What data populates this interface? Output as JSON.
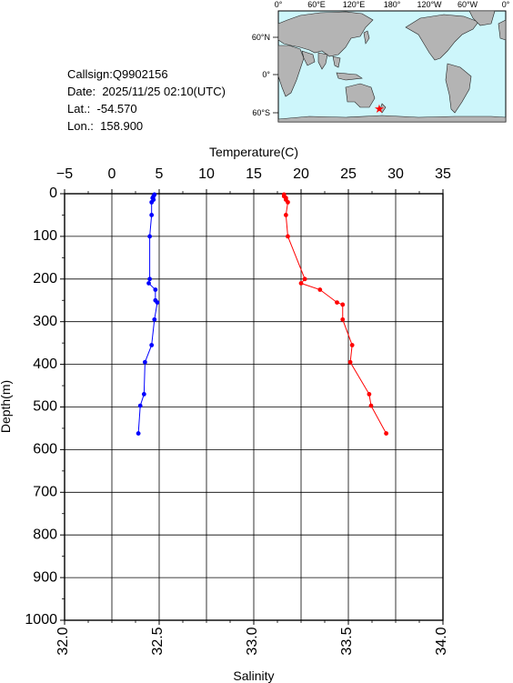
{
  "station": {
    "callsign_label": "Callsign:",
    "callsign": "Q9902156",
    "date_label": "Date:",
    "date": "2025/11/25 02:10(UTC)",
    "lat_label": "Lat.:",
    "lat": "-54.570",
    "lon_label": "Lon.:",
    "lon": "158.900"
  },
  "map": {
    "top_ticks": [
      "0°",
      "60°E",
      "120°E",
      "180°",
      "120°W",
      "60°W",
      "0°"
    ],
    "lat_ticks": [
      "60°N",
      "0°",
      "60°S"
    ],
    "colors": {
      "ocean": "#cdf6fb",
      "land": "#b4b4b4",
      "marker": "#ff0000"
    },
    "marker_icon": "star-icon"
  },
  "chart_data": {
    "type": "line",
    "title": "",
    "xlabel_top": "Temperature(C)",
    "xlabel_bottom": "Salinity",
    "ylabel": "Depth(m)",
    "temperature_range": [
      -5,
      35
    ],
    "salinity_range": [
      32.0,
      34.0
    ],
    "depth_range": [
      0,
      1000
    ],
    "y_inverted": true,
    "grid": true,
    "temperature_ticks": [
      "-5",
      "0",
      "5",
      "10",
      "15",
      "20",
      "25",
      "30",
      "35"
    ],
    "salinity_ticks": [
      "32.0",
      "32.5",
      "33.0",
      "33.5",
      "34.0"
    ],
    "depth_ticks": [
      "0",
      "100",
      "200",
      "300",
      "400",
      "500",
      "600",
      "700",
      "800",
      "900",
      "1000"
    ],
    "series": [
      {
        "key": "temperature",
        "color": "#0000ff",
        "axis": "temperature",
        "points": [
          [
            4.5,
            2
          ],
          [
            4.4,
            6
          ],
          [
            4.3,
            10
          ],
          [
            4.4,
            14
          ],
          [
            4.2,
            20
          ],
          [
            4.2,
            50
          ],
          [
            4.0,
            100
          ],
          [
            4.0,
            200
          ],
          [
            3.9,
            210
          ],
          [
            4.6,
            225
          ],
          [
            4.6,
            250
          ],
          [
            4.8,
            255
          ],
          [
            4.5,
            295
          ],
          [
            4.2,
            355
          ],
          [
            3.5,
            395
          ],
          [
            3.4,
            470
          ],
          [
            3.0,
            497
          ],
          [
            2.8,
            562
          ]
        ]
      },
      {
        "key": "salinity",
        "color": "#ff0000",
        "axis": "salinity",
        "points": [
          [
            33.16,
            2
          ],
          [
            33.16,
            6
          ],
          [
            33.17,
            10
          ],
          [
            33.17,
            14
          ],
          [
            33.18,
            20
          ],
          [
            33.17,
            50
          ],
          [
            33.18,
            100
          ],
          [
            33.27,
            200
          ],
          [
            33.25,
            210
          ],
          [
            33.35,
            225
          ],
          [
            33.44,
            255
          ],
          [
            33.47,
            260
          ],
          [
            33.47,
            295
          ],
          [
            33.52,
            355
          ],
          [
            33.51,
            395
          ],
          [
            33.61,
            470
          ],
          [
            33.62,
            497
          ],
          [
            33.7,
            562
          ]
        ]
      }
    ]
  }
}
